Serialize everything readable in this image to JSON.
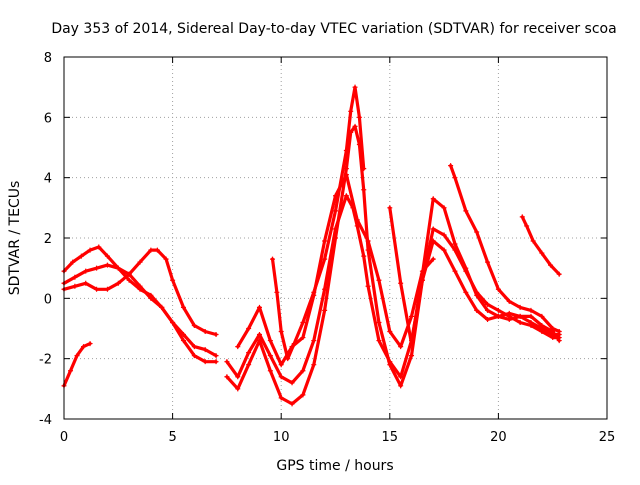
{
  "chart_data": {
    "type": "scatter",
    "title": "Day 353 of 2014, Sidereal Day-to-day VTEC variation (SDTVAR) for receiver scoa",
    "xlabel": "GPS time / hours",
    "ylabel": "SDTVAR / TECUs",
    "xlim": [
      0,
      25
    ],
    "ylim": [
      -4,
      8
    ],
    "xticks": [
      0,
      5,
      10,
      15,
      20,
      25
    ],
    "yticks": [
      -4,
      -2,
      0,
      2,
      4,
      6,
      8
    ],
    "grid": true,
    "marker": "+",
    "series_color": "#ff0000",
    "series": [
      {
        "name": "trace-1",
        "x": [
          0.0,
          0.3,
          0.6,
          0.9,
          1.2
        ],
        "y": [
          -2.9,
          -2.4,
          -1.9,
          -1.6,
          -1.5
        ]
      },
      {
        "name": "trace-2",
        "x": [
          0.0,
          0.4,
          0.8,
          1.2,
          1.6,
          2.0,
          2.5,
          3.0,
          3.5,
          4.0,
          4.5,
          5.0,
          5.5,
          6.0,
          6.5,
          7.0
        ],
        "y": [
          0.9,
          1.2,
          1.4,
          1.6,
          1.7,
          1.4,
          1.0,
          0.6,
          0.3,
          0.1,
          -0.3,
          -0.8,
          -1.4,
          -1.9,
          -2.1,
          -2.1
        ]
      },
      {
        "name": "trace-3",
        "x": [
          0.0,
          0.5,
          1.0,
          1.5,
          2.0,
          2.5,
          3.0,
          3.5,
          4.0,
          4.5,
          5.0,
          5.5,
          6.0,
          6.5,
          7.0
        ],
        "y": [
          0.5,
          0.7,
          0.9,
          1.0,
          1.1,
          1.0,
          0.8,
          0.4,
          0.0,
          -0.3,
          -0.8,
          -1.2,
          -1.6,
          -1.7,
          -1.9
        ]
      },
      {
        "name": "trace-4",
        "x": [
          0.0,
          0.5,
          1.0,
          1.5,
          2.0,
          2.5,
          3.0,
          3.5,
          4.0,
          4.3,
          4.7,
          5.0,
          5.5,
          6.0,
          6.5,
          7.0
        ],
        "y": [
          0.3,
          0.4,
          0.5,
          0.3,
          0.3,
          0.5,
          0.8,
          1.2,
          1.6,
          1.6,
          1.3,
          0.6,
          -0.3,
          -0.9,
          -1.1,
          -1.2
        ]
      },
      {
        "name": "trace-5",
        "x": [
          7.5,
          8.0,
          8.5,
          9.0,
          9.5,
          10.0,
          10.5,
          11.0,
          11.5,
          12.0,
          12.5,
          13.0,
          13.3,
          13.5,
          13.8,
          14.0,
          14.5,
          15.0,
          15.5,
          16.0,
          16.5,
          17.0,
          17.5,
          18.0,
          18.5,
          19.0,
          19.5,
          20.0,
          20.5,
          21.0,
          21.5,
          22.0,
          22.5,
          22.8
        ],
        "y": [
          -2.1,
          -2.6,
          -1.8,
          -1.2,
          -1.9,
          -2.6,
          -2.8,
          -2.4,
          -1.4,
          0.3,
          2.3,
          3.4,
          3.0,
          2.4,
          1.4,
          0.4,
          -1.4,
          -2.1,
          -2.6,
          -1.4,
          0.6,
          1.9,
          1.6,
          0.9,
          0.2,
          -0.4,
          -0.7,
          -0.6,
          -0.5,
          -0.6,
          -0.8,
          -1.0,
          -1.2,
          -1.2
        ]
      },
      {
        "name": "trace-6",
        "x": [
          7.5,
          8.0,
          8.5,
          9.0,
          9.5,
          10.0,
          10.5,
          11.0,
          11.5,
          12.0,
          12.5,
          13.0,
          13.2,
          13.4,
          13.6,
          13.8,
          14.0,
          14.5,
          15.0,
          15.5,
          16.0,
          16.5,
          17.0,
          17.5,
          18.0,
          18.5,
          19.0,
          19.5,
          20.0,
          20.5,
          21.0,
          21.5,
          22.0,
          22.5,
          22.8
        ],
        "y": [
          -2.6,
          -3.0,
          -2.2,
          -1.4,
          -2.4,
          -3.3,
          -3.5,
          -3.2,
          -2.2,
          -0.4,
          2.0,
          4.3,
          5.5,
          5.7,
          5.1,
          3.6,
          1.6,
          -0.8,
          -2.2,
          -2.9,
          -1.9,
          0.6,
          2.3,
          2.1,
          1.6,
          0.9,
          0.2,
          -0.2,
          -0.4,
          -0.6,
          -0.8,
          -0.9,
          -1.1,
          -1.3,
          -1.3
        ]
      },
      {
        "name": "trace-7",
        "x": [
          8.0,
          8.5,
          9.0,
          9.5,
          10.0,
          10.5,
          11.0,
          11.5,
          12.0,
          12.5,
          13.0,
          13.5,
          14.0,
          14.5,
          15.0,
          15.5,
          16.0,
          16.5,
          17.0
        ],
        "y": [
          -1.6,
          -1.0,
          -0.3,
          -1.4,
          -2.2,
          -1.6,
          -1.3,
          0.1,
          1.9,
          3.4,
          4.1,
          2.6,
          1.9,
          0.6,
          -1.1,
          -1.6,
          -0.6,
          0.9,
          1.3
        ]
      },
      {
        "name": "trace-8",
        "x": [
          9.6,
          9.8,
          10.0,
          10.3,
          10.6,
          11.0,
          11.5,
          12.0,
          12.5,
          13.0,
          13.2,
          13.4,
          13.6,
          13.8
        ],
        "y": [
          1.3,
          0.2,
          -1.1,
          -2.0,
          -1.5,
          -0.8,
          0.2,
          1.3,
          2.9,
          4.9,
          6.2,
          7.0,
          6.0,
          4.3
        ]
      },
      {
        "name": "trace-9",
        "x": [
          15.0,
          15.5,
          16.0,
          16.5,
          17.0,
          17.5,
          18.0,
          18.5,
          19.0,
          19.5,
          20.0,
          20.5,
          21.0,
          21.5,
          22.0,
          22.5,
          22.8
        ],
        "y": [
          3.0,
          0.5,
          -1.5,
          0.8,
          3.3,
          3.0,
          1.8,
          1.0,
          0.1,
          -0.4,
          -0.6,
          -0.7,
          -0.6,
          -0.6,
          -0.9,
          -1.1,
          -1.4
        ]
      },
      {
        "name": "trace-10",
        "x": [
          17.8,
          18.0,
          18.5,
          19.0,
          19.5,
          20.0,
          20.5,
          21.0,
          21.5,
          22.0,
          22.5,
          22.8
        ],
        "y": [
          4.4,
          4.0,
          2.9,
          2.2,
          1.2,
          0.3,
          -0.1,
          -0.3,
          -0.4,
          -0.6,
          -1.0,
          -1.1
        ]
      },
      {
        "name": "trace-11",
        "x": [
          21.1,
          21.3,
          21.6,
          22.0,
          22.4,
          22.8
        ],
        "y": [
          2.7,
          2.4,
          1.9,
          1.5,
          1.1,
          0.8
        ]
      }
    ]
  }
}
